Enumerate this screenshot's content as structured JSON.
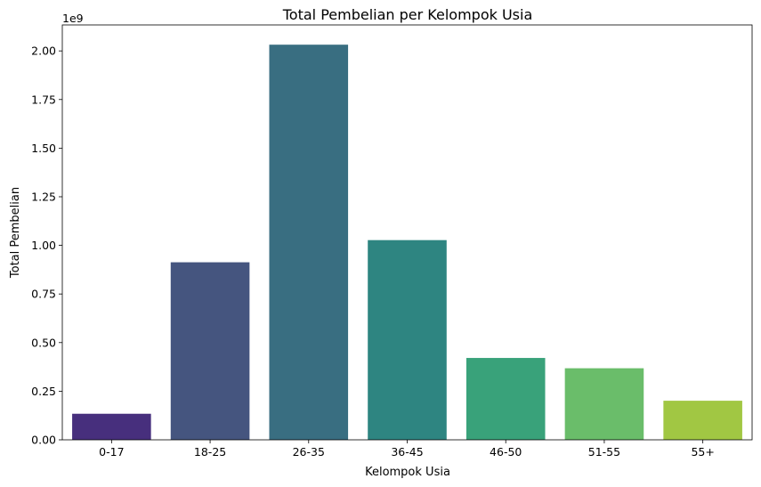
{
  "chart_data": {
    "type": "bar",
    "title": "Total Pembelian per Kelompok Usia",
    "xlabel": "Kelompok Usia",
    "ylabel": "Total Pembelian",
    "y_exponent_label": "1e9",
    "categories": [
      "0-17",
      "18-25",
      "26-35",
      "36-45",
      "46-50",
      "51-55",
      "55+"
    ],
    "values": [
      134000000,
      913000000,
      2032000000,
      1027000000,
      421000000,
      368000000,
      201000000
    ],
    "colors": [
      "#472f7d",
      "#45557f",
      "#396e81",
      "#2e8581",
      "#39a27a",
      "#6abd6a",
      "#a1c743"
    ],
    "ylim": [
      0,
      2133600000
    ],
    "y_ticks": [
      0,
      250000000,
      500000000,
      750000000,
      1000000000,
      1250000000,
      1500000000,
      1750000000,
      2000000000
    ],
    "y_tick_labels": [
      "0.00",
      "0.25",
      "0.50",
      "0.75",
      "1.00",
      "1.25",
      "1.50",
      "1.75",
      "2.00"
    ],
    "grid": false,
    "legend": "none"
  }
}
